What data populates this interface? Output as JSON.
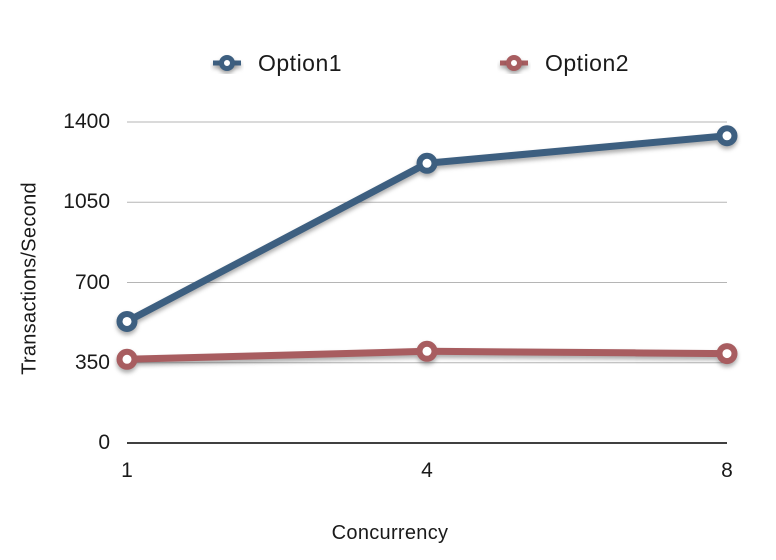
{
  "chart_data": {
    "type": "line",
    "title": "",
    "xlabel": "Concurrency",
    "ylabel": "Transactions/Second",
    "categories": [
      "1",
      "4",
      "8"
    ],
    "series": [
      {
        "name": "Option1",
        "color": "#3d5f80",
        "values": [
          530,
          1220,
          1340
        ]
      },
      {
        "name": "Option2",
        "color": "#a85d60",
        "values": [
          365,
          400,
          390
        ]
      }
    ],
    "y_ticks": [
      0,
      350,
      700,
      1050,
      1400
    ],
    "ylim": [
      0,
      1400
    ],
    "grid": "horizontal",
    "gridline_color": "#b5b5b5",
    "axis_line_color": "#000000",
    "text_color": "#1a1a1a",
    "marker_style": "ring",
    "legend_position": "top"
  }
}
